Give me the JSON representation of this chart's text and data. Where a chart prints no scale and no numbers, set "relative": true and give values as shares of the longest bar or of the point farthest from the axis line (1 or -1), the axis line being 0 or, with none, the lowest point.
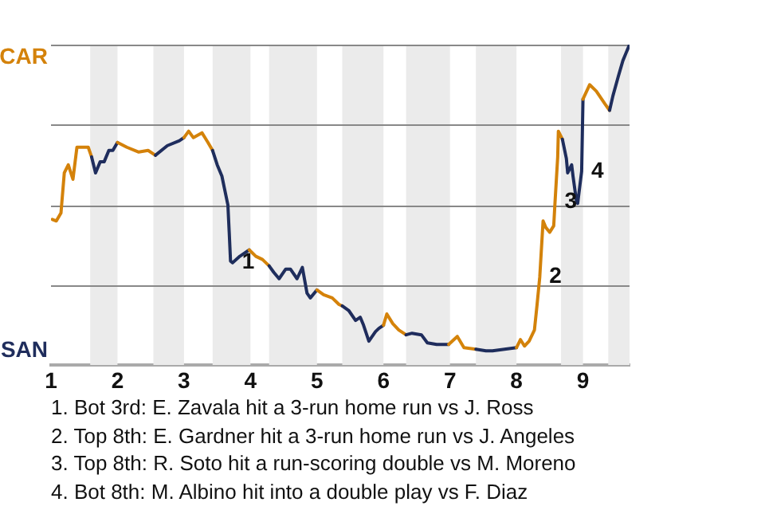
{
  "chart_data": {
    "type": "line",
    "relative": true,
    "xlim": [
      1,
      9.7
    ],
    "xticks": [
      1,
      2,
      3,
      4,
      5,
      6,
      7,
      8,
      9
    ],
    "grid": false,
    "marker": "none",
    "line_style": "solid",
    "legend": false,
    "ref_lines": [
      {
        "axis": "y",
        "value": 0,
        "label": "SAN",
        "color": "#aaaaaa"
      },
      {
        "axis": "y",
        "value": 0.25,
        "color": "#888888"
      },
      {
        "axis": "y",
        "value": 0.5,
        "color": "#888888"
      },
      {
        "axis": "y",
        "value": 0.75,
        "color": "#888888"
      },
      {
        "axis": "y",
        "value": 1,
        "label": "CAR",
        "color": "#888888"
      }
    ],
    "bands": [
      {
        "axis": "x",
        "from": 1.59,
        "to": 2,
        "color": "#ebebeb"
      },
      {
        "axis": "x",
        "from": 2.54,
        "to": 3,
        "color": "#ebebeb"
      },
      {
        "axis": "x",
        "from": 3.43,
        "to": 4,
        "color": "#ebebeb"
      },
      {
        "axis": "x",
        "from": 4.28,
        "to": 5,
        "color": "#ebebeb"
      },
      {
        "axis": "x",
        "from": 5.38,
        "to": 6,
        "color": "#ebebeb"
      },
      {
        "axis": "x",
        "from": 6.34,
        "to": 7,
        "color": "#ebebeb"
      },
      {
        "axis": "x",
        "from": 7.39,
        "to": 8,
        "color": "#ebebeb"
      },
      {
        "axis": "x",
        "from": 8.67,
        "to": 9,
        "color": "#ebebeb"
      },
      {
        "axis": "x",
        "from": 9.38,
        "to": 9.7,
        "color": "#ebebeb"
      }
    ],
    "series": [
      {
        "color": "#d4820a",
        "x": [
          1.02,
          1.08,
          1.15,
          1.2,
          1.26,
          1.33,
          1.39,
          1.49,
          1.56,
          1.61
        ],
        "values": [
          0.455,
          0.45,
          0.475,
          0.6,
          0.625,
          0.58,
          0.68,
          0.68,
          0.68,
          0.65
        ]
      },
      {
        "color": "#1f2d5d",
        "x": [
          1.61,
          1.67,
          1.74,
          1.8,
          1.87,
          1.93,
          2
        ],
        "values": [
          0.65,
          0.6,
          0.635,
          0.635,
          0.67,
          0.67,
          0.695
        ]
      },
      {
        "color": "#d4810a",
        "x": [
          2,
          2.14,
          2.32,
          2.46,
          2.57
        ],
        "values": [
          0.695,
          0.68,
          0.665,
          0.67,
          0.655
        ]
      },
      {
        "color": "#1f2d5e",
        "x": [
          2.57,
          2.75,
          2.93,
          3
        ],
        "values": [
          0.655,
          0.685,
          0.7,
          0.71
        ]
      },
      {
        "color": "#d4830a",
        "x": [
          3,
          3.07,
          3.14,
          3.27,
          3.36,
          3.43
        ],
        "values": [
          0.71,
          0.73,
          0.71,
          0.725,
          0.695,
          0.67
        ]
      },
      {
        "color": "#1f2e5c",
        "x": [
          3.43,
          3.5,
          3.57,
          3.61,
          3.66,
          3.68,
          3.7,
          3.73,
          3.84,
          3.98
        ],
        "values": [
          0.67,
          0.625,
          0.59,
          0.55,
          0.5,
          0.415,
          0.325,
          0.32,
          0.34,
          0.36
        ]
      },
      {
        "color": "#d4840a",
        "x": [
          3.98,
          4.08,
          4.18,
          4.28
        ],
        "values": [
          0.36,
          0.34,
          0.33,
          0.31
        ]
      },
      {
        "color": "#1f2e5d",
        "x": [
          4.28,
          4.35,
          4.43,
          4.53,
          4.6,
          4.7,
          4.78,
          4.85,
          4.9,
          5
        ],
        "values": [
          0.31,
          0.29,
          0.27,
          0.3,
          0.3,
          0.27,
          0.305,
          0.225,
          0.21,
          0.235
        ]
      },
      {
        "color": "#d5820a",
        "x": [
          5,
          5.1,
          5.23,
          5.33,
          5.38
        ],
        "values": [
          0.235,
          0.22,
          0.21,
          0.19,
          0.185
        ]
      },
      {
        "color": "#1f2c5c",
        "x": [
          5.38,
          5.48,
          5.58,
          5.65,
          5.7,
          5.78,
          5.88,
          5.93,
          6
        ],
        "values": [
          0.185,
          0.17,
          0.14,
          0.15,
          0.125,
          0.075,
          0.105,
          0.115,
          0.125
        ]
      },
      {
        "color": "#d5830a",
        "x": [
          6,
          6.05,
          6.14,
          6.23,
          6.34
        ],
        "values": [
          0.125,
          0.16,
          0.13,
          0.11,
          0.095
        ]
      },
      {
        "color": "#1f2c5d",
        "x": [
          6.34,
          6.43,
          6.57,
          6.66,
          6.8,
          6.98
        ],
        "values": [
          0.095,
          0.1,
          0.095,
          0.07,
          0.065,
          0.065
        ]
      },
      {
        "color": "#d5840a",
        "x": [
          6.98,
          7.11,
          7.21,
          7.39
        ],
        "values": [
          0.065,
          0.09,
          0.055,
          0.05
        ]
      },
      {
        "color": "#1e2d5c",
        "x": [
          7.39,
          7.54,
          7.64,
          7.82,
          8
        ],
        "values": [
          0.05,
          0.045,
          0.045,
          0.05,
          0.055
        ]
      },
      {
        "color": "#d3820a",
        "x": [
          8,
          8.06,
          8.12,
          8.19,
          8.27,
          8.31,
          8.35,
          8.38,
          8.4,
          8.44,
          8.5,
          8.56,
          8.58,
          8.62,
          8.63,
          8.69
        ],
        "values": [
          0.055,
          0.08,
          0.06,
          0.075,
          0.11,
          0.19,
          0.275,
          0.38,
          0.45,
          0.43,
          0.415,
          0.435,
          0.51,
          0.65,
          0.73,
          0.705
        ]
      },
      {
        "color": "#1e2d5d",
        "x": [
          8.69,
          8.75,
          8.77,
          8.83,
          8.85,
          8.9,
          8.92,
          8.98,
          9
        ],
        "values": [
          0.705,
          0.645,
          0.6,
          0.625,
          0.59,
          0.515,
          0.505,
          0.605,
          0.83
        ]
      },
      {
        "color": "#d3830a",
        "x": [
          9,
          9.1,
          9.2,
          9.33,
          9.4
        ],
        "values": [
          0.83,
          0.875,
          0.855,
          0.815,
          0.795
        ]
      },
      {
        "color": "#1f2d5c",
        "x": [
          9.4,
          9.45,
          9.53,
          9.6,
          9.65,
          9.7
        ],
        "values": [
          0.795,
          0.84,
          0.9,
          0.95,
          0.975,
          1
        ]
      }
    ],
    "annotations": [
      {
        "text": "1",
        "x": 3.73,
        "y": 0.32
      },
      {
        "text": "2",
        "x": 8.35,
        "y": 0.275
      },
      {
        "text": "3",
        "x": 8.58,
        "y": 0.51
      },
      {
        "text": "4",
        "x": 8.98,
        "y": 0.605
      },
      "1. Bot 3rd: E. Zavala hit a 3-run home run vs J. Ross",
      "2. Top 8th: E. Gardner hit a 3-run home run vs J. Angeles",
      "3. Top 8th: R. Soto hit a run-scoring double vs M. Moreno",
      "4. Bot 8th: M. Albino hit into a double play vs F. Diaz"
    ]
  }
}
